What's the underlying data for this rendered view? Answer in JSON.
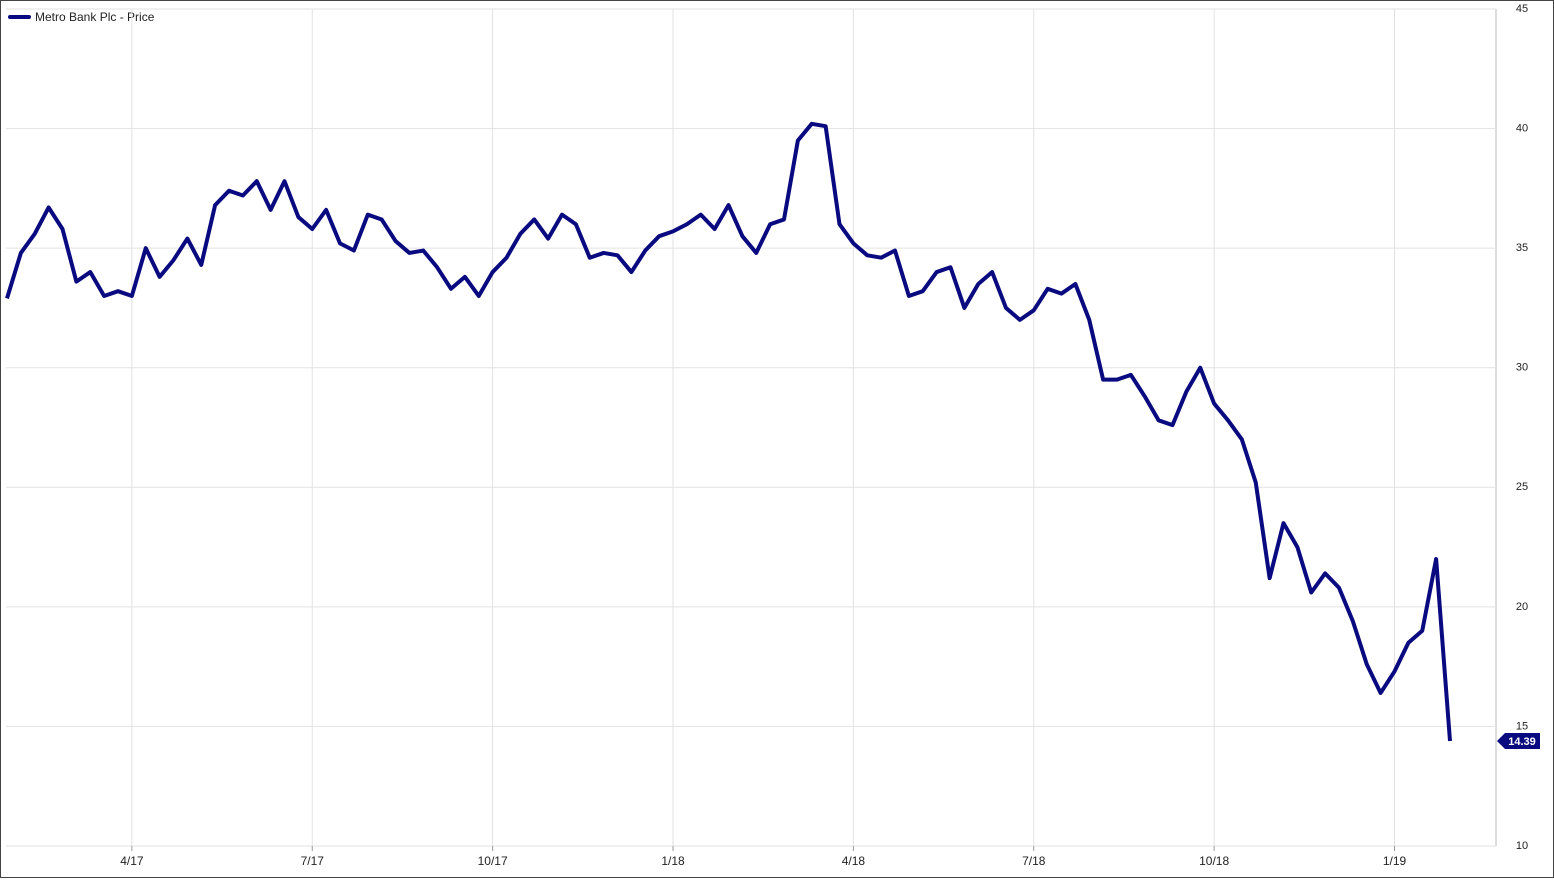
{
  "chart_data": {
    "type": "line",
    "categories": [
      null,
      null,
      null,
      null,
      null,
      null,
      null,
      null,
      null,
      "4/17",
      null,
      null,
      null,
      null,
      null,
      null,
      null,
      null,
      null,
      null,
      null,
      null,
      "7/17",
      null,
      null,
      null,
      null,
      null,
      null,
      null,
      null,
      null,
      null,
      null,
      null,
      "10/17",
      null,
      null,
      null,
      null,
      null,
      null,
      null,
      null,
      null,
      null,
      null,
      null,
      "1/18",
      null,
      null,
      null,
      null,
      null,
      null,
      null,
      null,
      null,
      null,
      null,
      null,
      "4/18",
      null,
      null,
      null,
      null,
      null,
      null,
      null,
      null,
      null,
      null,
      null,
      null,
      "7/18",
      null,
      null,
      null,
      null,
      null,
      null,
      null,
      null,
      null,
      null,
      null,
      null,
      "10/18",
      null,
      null,
      null,
      null,
      null,
      null,
      null,
      null,
      null,
      null,
      null,
      null,
      "1/19",
      null,
      null,
      null,
      null
    ],
    "series": [
      {
        "name": "Metro Bank Plc - Price",
        "color": "#0a0a80",
        "values": [
          32.9,
          34.8,
          35.6,
          36.7,
          35.8,
          33.6,
          34.0,
          33.0,
          33.2,
          33.0,
          35.0,
          33.8,
          34.5,
          35.4,
          34.3,
          36.8,
          37.4,
          37.2,
          37.8,
          36.6,
          37.8,
          36.3,
          35.8,
          36.6,
          35.2,
          34.9,
          36.4,
          36.2,
          35.3,
          34.8,
          34.9,
          34.2,
          33.3,
          33.8,
          33.0,
          34.0,
          34.6,
          35.6,
          36.2,
          35.4,
          36.4,
          36.0,
          34.6,
          34.8,
          34.7,
          34.0,
          34.9,
          35.5,
          35.7,
          36.0,
          36.4,
          35.8,
          36.8,
          35.5,
          34.8,
          36.0,
          36.2,
          39.5,
          40.2,
          40.1,
          36.0,
          35.2,
          34.7,
          34.6,
          34.9,
          33.0,
          33.2,
          34.0,
          34.2,
          32.5,
          33.5,
          34.0,
          32.5,
          32.0,
          32.4,
          33.3,
          33.1,
          33.5,
          32.0,
          29.5,
          29.5,
          29.7,
          28.8,
          27.8,
          27.6,
          29.0,
          30.0,
          28.5,
          27.8,
          27.0,
          25.2,
          21.2,
          23.5,
          22.5,
          20.6,
          21.4,
          20.8,
          19.4,
          17.6,
          16.4,
          17.3,
          18.5,
          19.0,
          22.0,
          14.39
        ]
      }
    ],
    "ylim": [
      10,
      45
    ],
    "yticks": [
      10,
      15,
      20,
      25,
      30,
      35,
      40,
      45
    ],
    "grid": true
  }
}
